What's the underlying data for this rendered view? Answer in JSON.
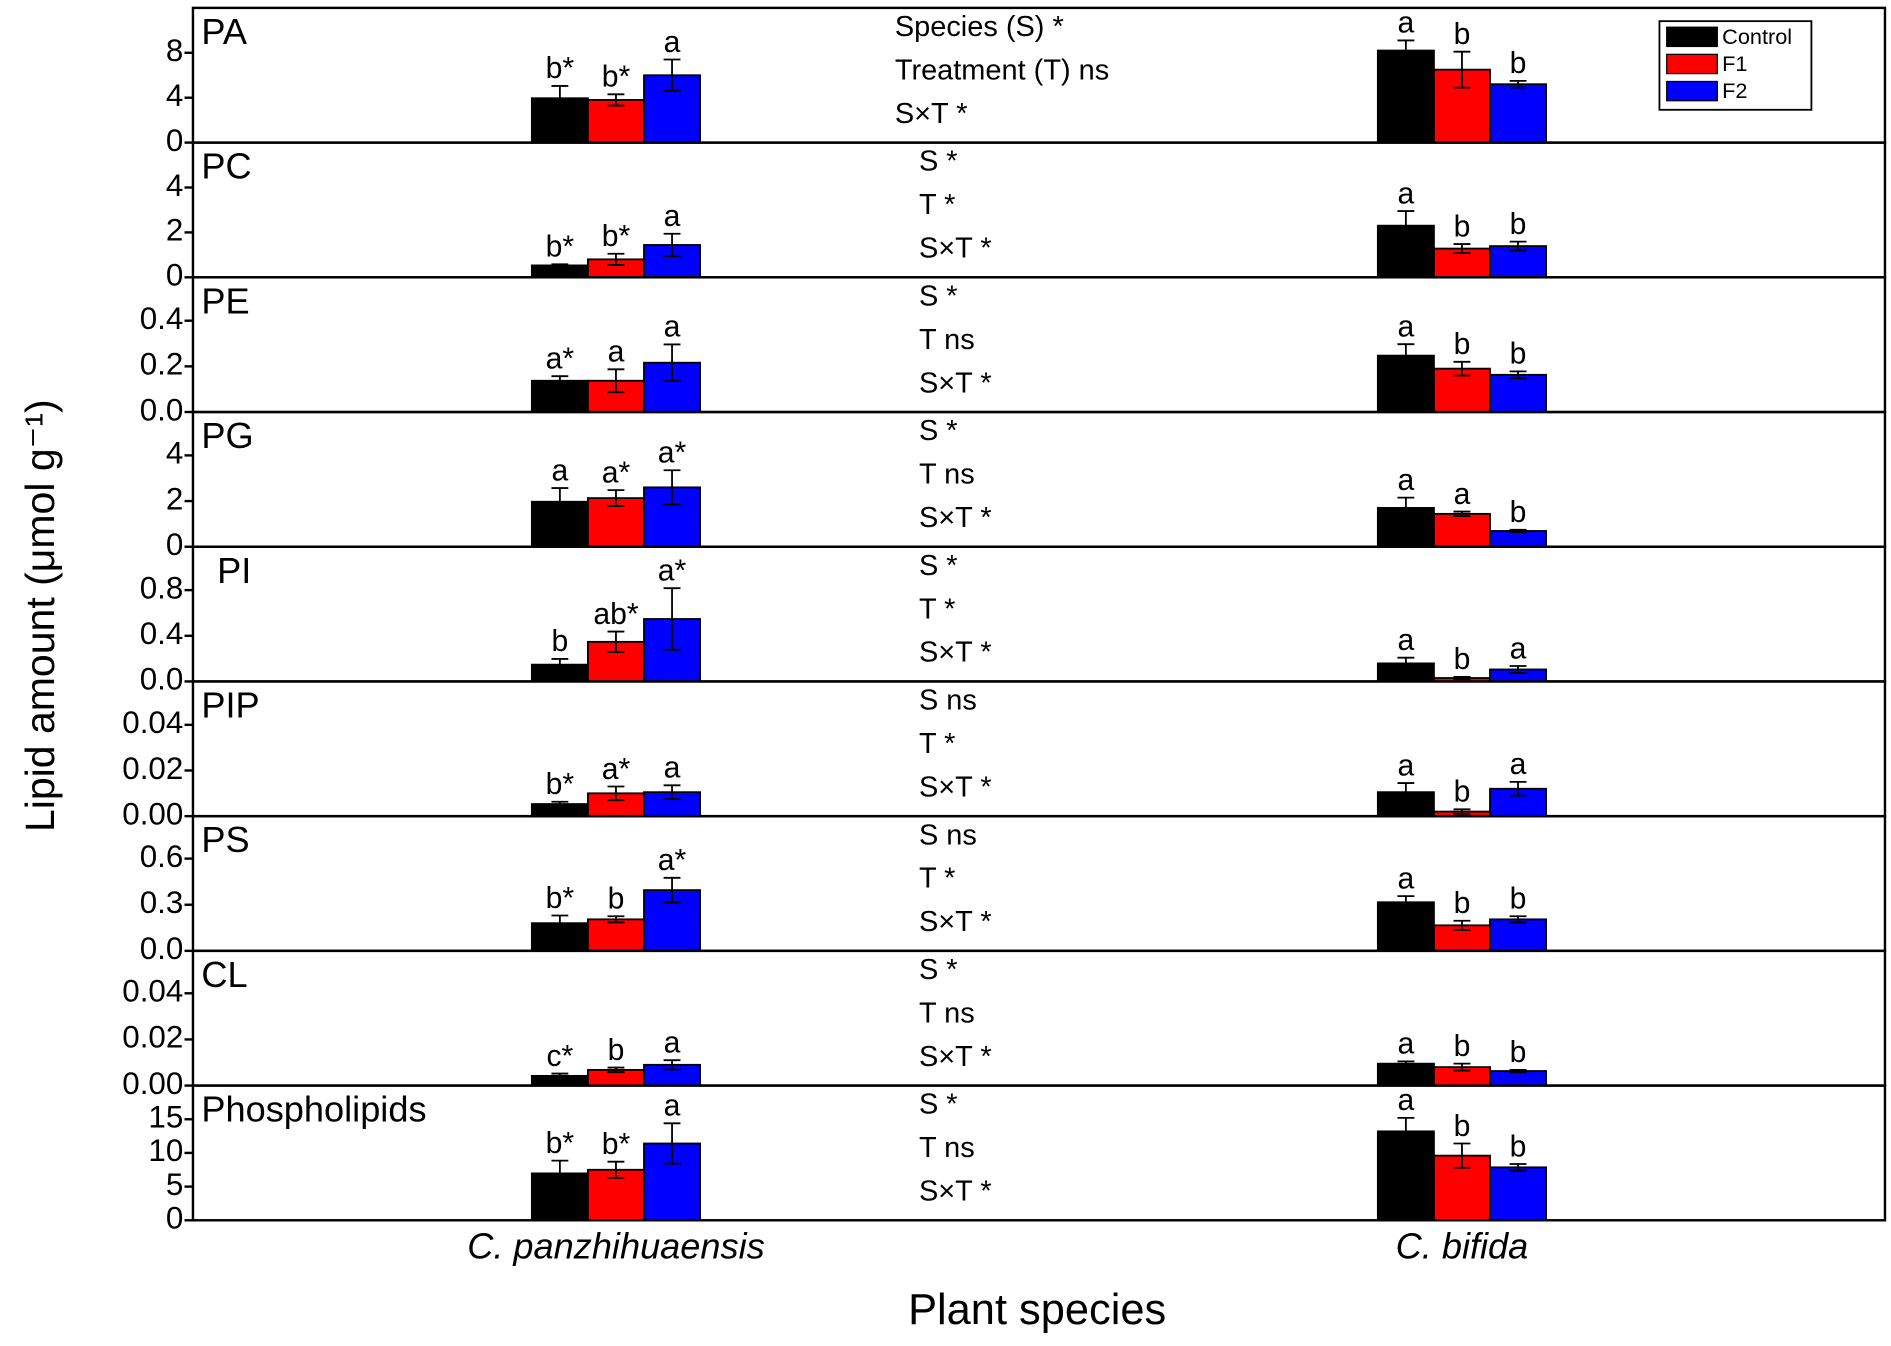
{
  "x_label": "Plant species",
  "y_label": "Lipid amount (μmol g⁻¹)",
  "categories": [
    "C. panzhihuaensis",
    "C. bifida"
  ],
  "legend": {
    "position": "upper right",
    "series": [
      {
        "name": "Control",
        "color": "#000000"
      },
      {
        "name": "F1",
        "color": "#ff0000"
      },
      {
        "name": "F2",
        "color": "#0000ff"
      }
    ]
  },
  "chart_data": [
    {
      "type": "bar",
      "title": "PA",
      "ylim": [
        0,
        12
      ],
      "yticks": [
        0,
        4,
        8
      ],
      "annotations": [
        "Species (S) *",
        "Treatment (T) ns",
        "S×T *"
      ],
      "series": [
        {
          "values": [
            3.95,
            8.2
          ],
          "errors": [
            1.1,
            0.9
          ],
          "value_labels": [
            "b*",
            "a"
          ]
        },
        {
          "values": [
            3.8,
            6.5
          ],
          "errors": [
            0.5,
            1.6
          ],
          "value_labels": [
            "b*",
            "b"
          ]
        },
        {
          "values": [
            6.0,
            5.2
          ],
          "errors": [
            1.4,
            0.3
          ],
          "value_labels": [
            "a",
            "b"
          ]
        }
      ]
    },
    {
      "type": "bar",
      "title": "PC",
      "ylim": [
        0,
        6
      ],
      "yticks": [
        0,
        2,
        4
      ],
      "annotations": [
        "S *",
        "T *",
        "S×T *"
      ],
      "series": [
        {
          "values": [
            0.53,
            2.3
          ],
          "errors": [
            0.05,
            0.65
          ],
          "value_labels": [
            "b*",
            "a"
          ]
        },
        {
          "values": [
            0.8,
            1.28
          ],
          "errors": [
            0.25,
            0.2
          ],
          "value_labels": [
            "b*",
            "b"
          ]
        },
        {
          "values": [
            1.44,
            1.39
          ],
          "errors": [
            0.5,
            0.2
          ],
          "value_labels": [
            "a",
            "b"
          ]
        }
      ]
    },
    {
      "type": "bar",
      "title": "PE",
      "ylim": [
        0,
        0.59
      ],
      "yticks": [
        {
          "value": 0,
          "label": "0.0"
        },
        0.2,
        0.4
      ],
      "annotations": [
        "S *",
        "T ns",
        "S×T *"
      ],
      "series": [
        {
          "values": [
            0.137,
            0.247
          ],
          "errors": [
            0.02,
            0.05
          ],
          "value_labels": [
            "a*",
            "a"
          ]
        },
        {
          "values": [
            0.137,
            0.19
          ],
          "errors": [
            0.05,
            0.03
          ],
          "value_labels": [
            "a",
            "b"
          ]
        },
        {
          "values": [
            0.216,
            0.163
          ],
          "errors": [
            0.08,
            0.015
          ],
          "value_labels": [
            "a",
            "b"
          ]
        }
      ]
    },
    {
      "type": "bar",
      "title": "PG",
      "ylim": [
        0,
        5.9
      ],
      "yticks": [
        0,
        2,
        4
      ],
      "annotations": [
        "S *",
        "T ns",
        "S×T *"
      ],
      "series": [
        {
          "values": [
            1.97,
            1.7
          ],
          "errors": [
            0.6,
            0.45
          ],
          "value_labels": [
            "a",
            "a"
          ]
        },
        {
          "values": [
            2.13,
            1.44
          ],
          "errors": [
            0.35,
            0.1
          ],
          "value_labels": [
            "a*",
            "a"
          ]
        },
        {
          "values": [
            2.6,
            0.69
          ],
          "errors": [
            0.75,
            0.05
          ],
          "value_labels": [
            "a*",
            "b"
          ]
        }
      ]
    },
    {
      "type": "bar",
      "title": "PI",
      "ylim": [
        0,
        1.18
      ],
      "yticks": [
        {
          "value": 0,
          "label": "0.0"
        },
        0.4,
        0.8
      ],
      "annotations": [
        "S *",
        "T *",
        "S×T *"
      ],
      "series": [
        {
          "values": [
            0.147,
            0.158
          ],
          "errors": [
            0.05,
            0.05
          ],
          "value_labels": [
            "b",
            "a"
          ]
        },
        {
          "values": [
            0.347,
            0.03
          ],
          "errors": [
            0.09,
            0.01
          ],
          "value_labels": [
            "ab*",
            "b"
          ]
        },
        {
          "values": [
            0.547,
            0.105
          ],
          "errors": [
            0.27,
            0.03
          ],
          "value_labels": [
            "a*",
            "a"
          ]
        }
      ]
    },
    {
      "type": "bar",
      "title": "PIP",
      "ylim": [
        0,
        0.059
      ],
      "yticks": [
        {
          "value": 0,
          "label": "0.00"
        },
        0.02,
        0.04
      ],
      "annotations": [
        "S ns",
        "T *",
        "S×T *"
      ],
      "series": [
        {
          "values": [
            0.0053,
            0.0105
          ],
          "errors": [
            0.001,
            0.004
          ],
          "value_labels": [
            "b*",
            "a"
          ]
        },
        {
          "values": [
            0.01,
            0.002
          ],
          "errors": [
            0.003,
            0.001
          ],
          "value_labels": [
            "a*",
            "b"
          ]
        },
        {
          "values": [
            0.0105,
            0.012
          ],
          "errors": [
            0.003,
            0.003
          ],
          "value_labels": [
            "a",
            "a"
          ]
        }
      ]
    },
    {
      "type": "bar",
      "title": "PS",
      "ylim": [
        0,
        0.876
      ],
      "yticks": [
        {
          "value": 0,
          "label": "0.0"
        },
        0.3,
        0.6
      ],
      "annotations": [
        "S ns",
        "T *",
        "S×T *"
      ],
      "series": [
        {
          "values": [
            0.18,
            0.316
          ],
          "errors": [
            0.05,
            0.04
          ],
          "value_labels": [
            "b*",
            "a"
          ]
        },
        {
          "values": [
            0.205,
            0.166
          ],
          "errors": [
            0.02,
            0.03
          ],
          "value_labels": [
            "b",
            "b"
          ]
        },
        {
          "values": [
            0.395,
            0.205
          ],
          "errors": [
            0.08,
            0.02
          ],
          "value_labels": [
            "a*",
            "b"
          ]
        }
      ]
    },
    {
      "type": "bar",
      "title": "CL",
      "ylim": [
        0,
        0.0584
      ],
      "yticks": [
        {
          "value": 0,
          "label": "0.00"
        },
        0.02,
        0.04
      ],
      "annotations": [
        "S *",
        "T ns",
        "S×T *"
      ],
      "series": [
        {
          "values": [
            0.0042,
            0.0095
          ],
          "errors": [
            0.001,
            0.001
          ],
          "value_labels": [
            "c*",
            "a"
          ]
        },
        {
          "values": [
            0.0068,
            0.008
          ],
          "errors": [
            0.001,
            0.0015
          ],
          "value_labels": [
            "b",
            "b"
          ]
        },
        {
          "values": [
            0.009,
            0.0063
          ],
          "errors": [
            0.002,
            0.0005
          ],
          "value_labels": [
            "a",
            "b"
          ]
        }
      ]
    },
    {
      "type": "bar",
      "title": "Phospholipids",
      "ylim": [
        0,
        20
      ],
      "yticks": [
        0,
        5,
        10,
        15
      ],
      "annotations": [
        "S *",
        "T ns",
        "S×T *"
      ],
      "series": [
        {
          "values": [
            6.96,
            13.2
          ],
          "errors": [
            1.9,
            2.0
          ],
          "value_labels": [
            "b*",
            "a"
          ]
        },
        {
          "values": [
            7.5,
            9.6
          ],
          "errors": [
            1.2,
            1.8
          ],
          "value_labels": [
            "b*",
            "b"
          ]
        },
        {
          "values": [
            11.4,
            7.86
          ],
          "errors": [
            3.0,
            0.5
          ],
          "value_labels": [
            "a",
            "b"
          ]
        }
      ]
    }
  ]
}
